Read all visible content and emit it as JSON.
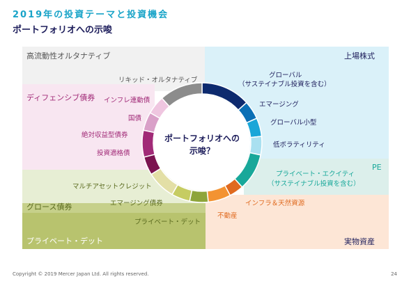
{
  "header": {
    "title": "2019年の投資テーマと投資機会",
    "subtitle": "ポートフォリオへの示唆"
  },
  "center_text": {
    "line1": "ポートフォリオへの",
    "line2": "示唆？"
  },
  "categories": {
    "alt": "高流動性オルタナティブ",
    "equity": "上場株式",
    "defensive": "ディフェンシブ債券",
    "pe": "PE",
    "growth": "グロース債券",
    "private_debt": "プライベート・デット",
    "real_assets": "実物資産"
  },
  "labels": {
    "liquid_alt": "リキッド・オルタナティブ",
    "inflation_bond": "インフレ連動債",
    "govt_bond": "国債",
    "absolute_return": "絶対収益型債券",
    "ig_bond": "投資適格債",
    "global_sustainable_1": "グローバル",
    "global_sustainable_2": "（サステイナブル投資を含む）",
    "emerging": "エマージング",
    "global_small": "グローバル小型",
    "low_vol": "低ボラティリティ",
    "private_equity_1": "プライベート・エクイティ",
    "private_equity_2": "（サステイナブル投資を含む）",
    "multi_asset_credit": "マルチアセットクレジット",
    "em_bond": "エマージング債券",
    "private_debt_item": "プライベート・デット",
    "infra": "インフラ＆天然資源",
    "real_estate": "不動産"
  },
  "colors": {
    "navy": "#0d2a6e",
    "blue": "#0a6fb5",
    "cyan": "#1aa6d8",
    "light_cyan": "#a9e0f0",
    "teal": "#18a89a",
    "orange_dark": "#e06a1f",
    "orange": "#f39332",
    "olive": "#8ea53a",
    "olive_light": "#c6cc62",
    "cream": "#e3dfa6",
    "magenta_dark": "#7b1350",
    "magenta": "#a12a77",
    "pink": "#d9a0c8",
    "pink_light": "#efc6e0",
    "grey": "#8c8c8c"
  },
  "footer": {
    "copyright": "Copyright © 2019 Mercer Japan Ltd. All rights reserved.",
    "page": "24"
  }
}
